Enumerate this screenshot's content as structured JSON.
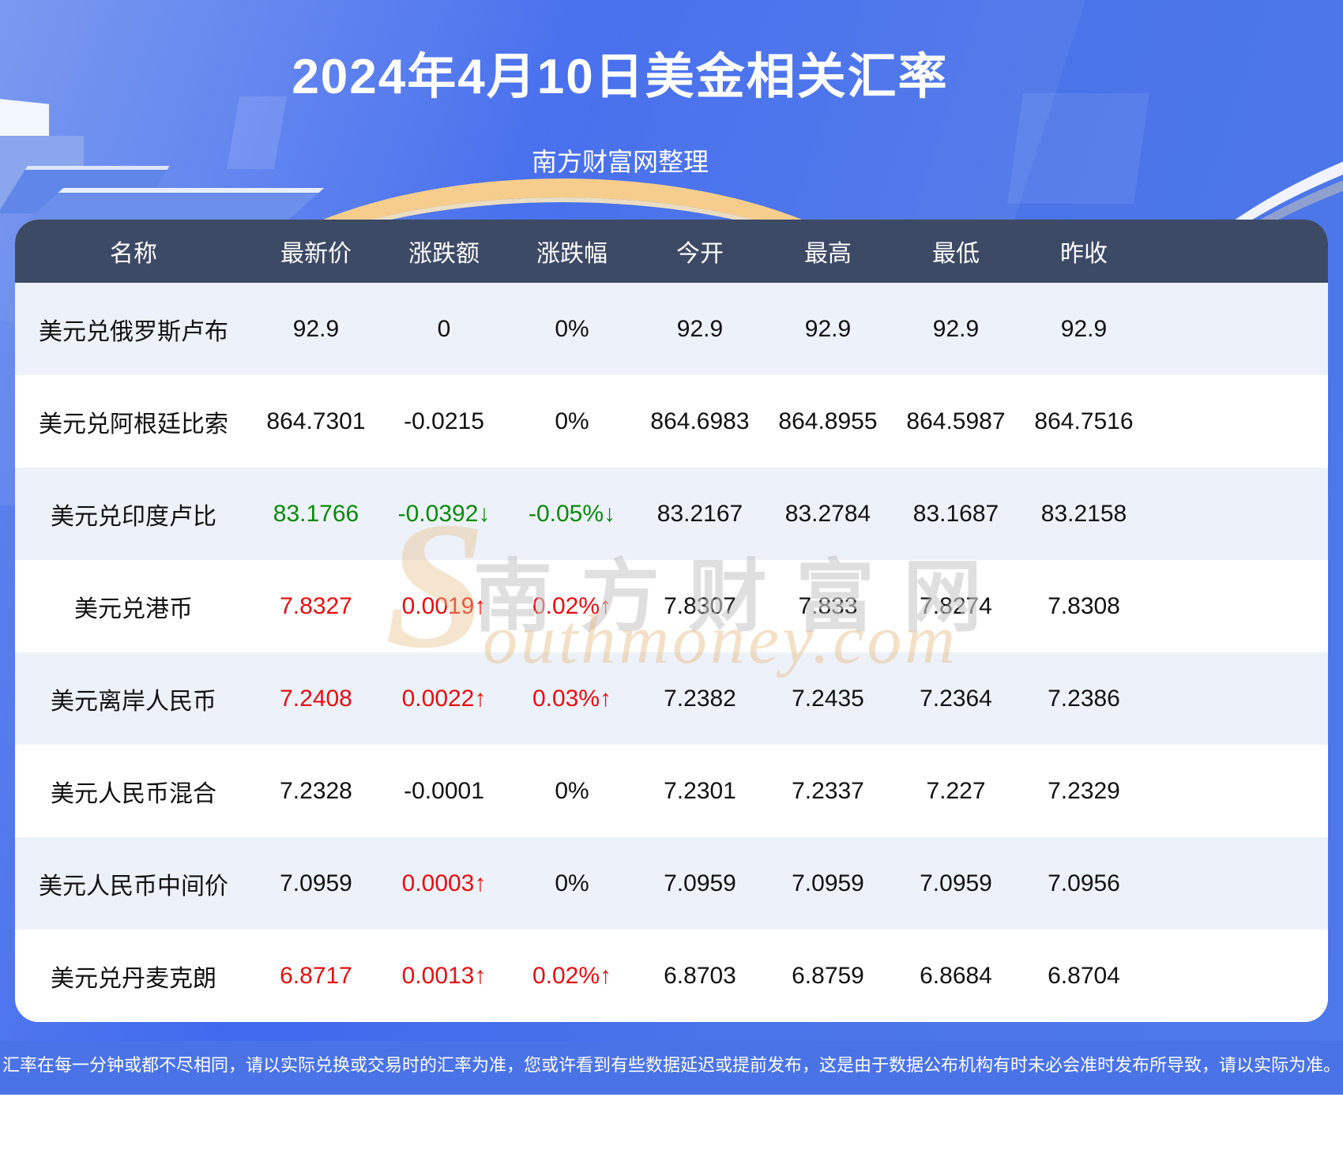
{
  "page": {
    "title": "2024年4月10日美金相关汇率",
    "subtitle": "南方财富网整理",
    "disclaimer": "汇率在每一分钟或都不尽相同，请以实际兑换或交易时的汇率为准，您或许看到有些数据延迟或提前发布，这是由于数据公布机构有时未必会准时发布所导致，请以实际为准。"
  },
  "watermark": {
    "initial": "S",
    "brand_cn": "南方财富网",
    "brand_en": "outhmoney.com"
  },
  "colors": {
    "up_red": "#e60f0f",
    "down_green": "#088a08",
    "header_bg": "#3d4a66",
    "row_alt_bg": "#edf2fa",
    "band_blue": "#4a73e8"
  },
  "table": {
    "columns": [
      "名称",
      "最新价",
      "涨跌额",
      "涨跌幅",
      "今开",
      "最高",
      "最低",
      "昨收"
    ],
    "rows": [
      {
        "name": "美元兑俄罗斯卢布",
        "cells": [
          {
            "text": "92.9"
          },
          {
            "text": "0"
          },
          {
            "text": "0%"
          },
          {
            "text": "92.9"
          },
          {
            "text": "92.9"
          },
          {
            "text": "92.9"
          },
          {
            "text": "92.9"
          }
        ]
      },
      {
        "name": "美元兑阿根廷比索",
        "cells": [
          {
            "text": "864.7301"
          },
          {
            "text": "-0.0215"
          },
          {
            "text": "0%"
          },
          {
            "text": "864.6983"
          },
          {
            "text": "864.8955"
          },
          {
            "text": "864.5987"
          },
          {
            "text": "864.7516"
          }
        ]
      },
      {
        "name": "美元兑印度卢比",
        "cells": [
          {
            "text": "83.1766",
            "dir": "down"
          },
          {
            "text": "-0.0392↓",
            "dir": "down"
          },
          {
            "text": "-0.05%↓",
            "dir": "down"
          },
          {
            "text": "83.2167"
          },
          {
            "text": "83.2784"
          },
          {
            "text": "83.1687"
          },
          {
            "text": "83.2158"
          }
        ]
      },
      {
        "name": "美元兑港币",
        "cells": [
          {
            "text": "7.8327",
            "dir": "up"
          },
          {
            "text": "0.0019↑",
            "dir": "up"
          },
          {
            "text": "0.02%↑",
            "dir": "up"
          },
          {
            "text": "7.8307"
          },
          {
            "text": "7.833"
          },
          {
            "text": "7.8274"
          },
          {
            "text": "7.8308"
          }
        ]
      },
      {
        "name": "美元离岸人民币",
        "cells": [
          {
            "text": "7.2408",
            "dir": "up"
          },
          {
            "text": "0.0022↑",
            "dir": "up"
          },
          {
            "text": "0.03%↑",
            "dir": "up"
          },
          {
            "text": "7.2382"
          },
          {
            "text": "7.2435"
          },
          {
            "text": "7.2364"
          },
          {
            "text": "7.2386"
          }
        ]
      },
      {
        "name": "美元人民币混合",
        "cells": [
          {
            "text": "7.2328"
          },
          {
            "text": "-0.0001"
          },
          {
            "text": "0%"
          },
          {
            "text": "7.2301"
          },
          {
            "text": "7.2337"
          },
          {
            "text": "7.227"
          },
          {
            "text": "7.2329"
          }
        ]
      },
      {
        "name": "美元人民币中间价",
        "cells": [
          {
            "text": "7.0959"
          },
          {
            "text": "0.0003↑",
            "dir": "up"
          },
          {
            "text": "0%"
          },
          {
            "text": "7.0959"
          },
          {
            "text": "7.0959"
          },
          {
            "text": "7.0959"
          },
          {
            "text": "7.0956"
          }
        ]
      },
      {
        "name": "美元兑丹麦克朗",
        "cells": [
          {
            "text": "6.8717",
            "dir": "up"
          },
          {
            "text": "0.0013↑",
            "dir": "up"
          },
          {
            "text": "0.02%↑",
            "dir": "up"
          },
          {
            "text": "6.8703"
          },
          {
            "text": "6.8759"
          },
          {
            "text": "6.8684"
          },
          {
            "text": "6.8704"
          }
        ]
      }
    ]
  }
}
